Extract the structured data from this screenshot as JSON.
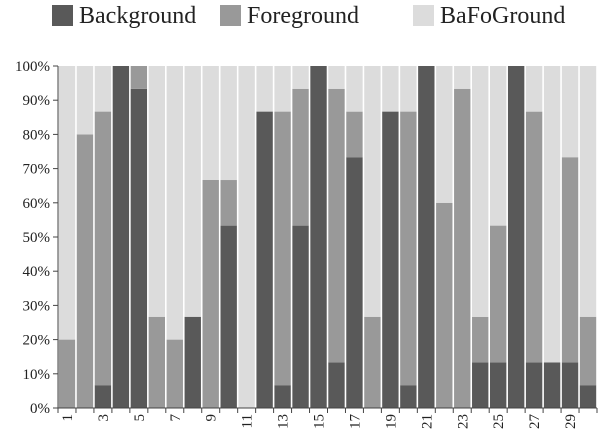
{
  "chart_data": {
    "type": "bar",
    "stacked": "percent",
    "categories": [
      "1",
      "2",
      "3",
      "4",
      "5",
      "6",
      "7",
      "8",
      "9",
      "10",
      "11",
      "12",
      "13",
      "14",
      "15",
      "16",
      "17",
      "18",
      "19",
      "20",
      "21",
      "22",
      "23",
      "24",
      "25",
      "26",
      "27",
      "28",
      "29",
      "30"
    ],
    "x_tick_labels_shown": [
      "1",
      "3",
      "5",
      "7",
      "9",
      "11",
      "13",
      "15",
      "17",
      "19",
      "21",
      "23",
      "25",
      "27",
      "29"
    ],
    "series": [
      {
        "name": "Background",
        "color": "#595959",
        "values": [
          0,
          0,
          6.67,
          100,
          93.33,
          0,
          0,
          26.67,
          0,
          53.33,
          0,
          86.67,
          6.67,
          53.33,
          100,
          13.33,
          73.33,
          0,
          86.67,
          6.67,
          100,
          0,
          0,
          13.33,
          13.33,
          100,
          13.33,
          13.33,
          13.33,
          6.67
        ]
      },
      {
        "name": "Foreground",
        "color": "#999999",
        "values": [
          20,
          80,
          80,
          0,
          6.67,
          26.67,
          20,
          0,
          66.67,
          13.33,
          0,
          0,
          80,
          40,
          0,
          80,
          13.33,
          26.67,
          0,
          80,
          0,
          60,
          93.33,
          13.33,
          40,
          0,
          73.33,
          0,
          60,
          20
        ]
      },
      {
        "name": "BaFoGround",
        "color": "#dcdcdc",
        "values": [
          80,
          20,
          13.33,
          0,
          0,
          73.33,
          80,
          73.33,
          33.33,
          33.34,
          100,
          13.33,
          13.33,
          6.67,
          0,
          6.67,
          13.34,
          73.33,
          13.33,
          13.33,
          0,
          40,
          6.67,
          73.34,
          46.67,
          0,
          13.34,
          86.67,
          26.67,
          73.33
        ]
      }
    ],
    "y_tick_labels": [
      "0%",
      "10%",
      "20%",
      "30%",
      "40%",
      "50%",
      "60%",
      "70%",
      "80%",
      "90%",
      "100%"
    ],
    "ylim": [
      0,
      100
    ],
    "title": "",
    "xlabel": "",
    "ylabel": "",
    "legend_position": "top",
    "grid": false
  }
}
